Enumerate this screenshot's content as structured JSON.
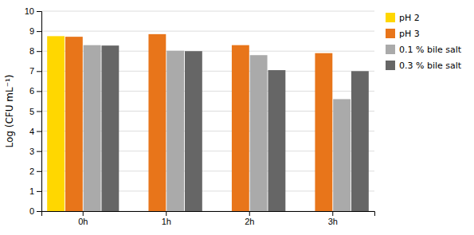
{
  "chart_data": {
    "type": "bar",
    "categories": [
      "0h",
      "1h",
      "2h",
      "3h"
    ],
    "series": [
      {
        "name": "pH 2",
        "color": "#FFD700",
        "values": [
          8.75,
          null,
          null,
          null
        ]
      },
      {
        "name": "pH 3",
        "color": "#E8751A",
        "values": [
          8.72,
          8.85,
          8.3,
          7.9
        ]
      },
      {
        "name": "0.1 % bile salt",
        "color": "#AAAAAA",
        "values": [
          8.3,
          8.02,
          7.8,
          5.6
        ]
      },
      {
        "name": "0.3 % bile salt",
        "color": "#666666",
        "values": [
          8.28,
          8.0,
          7.05,
          7.0
        ]
      }
    ],
    "ylabel": "Log (CFU mL⁻¹)",
    "ylim": [
      0,
      10
    ],
    "yticks": [
      0,
      1,
      2,
      3,
      4,
      5,
      6,
      7,
      8,
      9,
      10
    ],
    "grid": true,
    "legend": "right"
  }
}
